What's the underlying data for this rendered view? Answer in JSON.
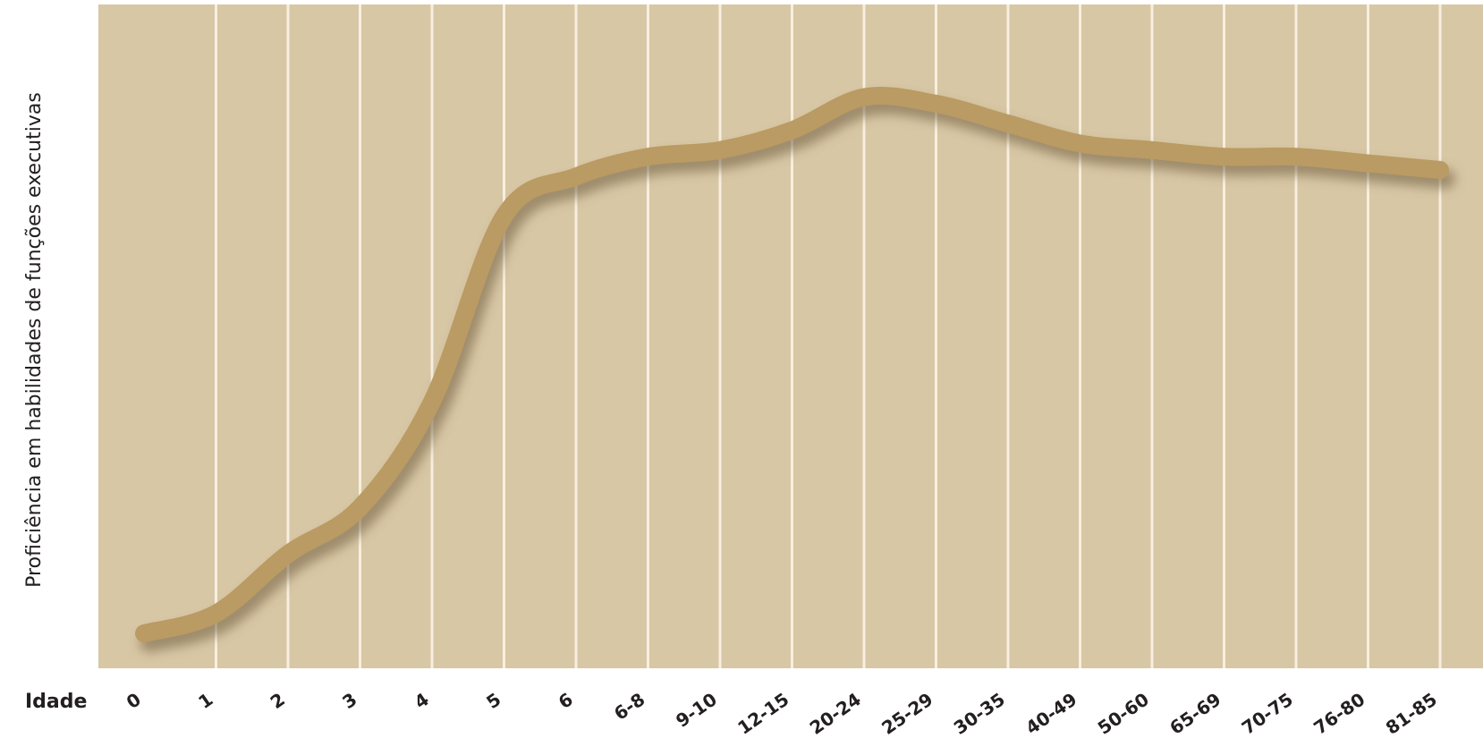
{
  "chart_data": {
    "type": "line",
    "title": "",
    "ylabel": "Proficiência em habilidades de funções executivas",
    "xlabel": "Idade",
    "categories": [
      "0",
      "1",
      "2",
      "3",
      "4",
      "5",
      "6",
      "6-8",
      "9-10",
      "12-15",
      "20-24",
      "25-29",
      "30-35",
      "40-49",
      "50-60",
      "65-69",
      "70-75",
      "76-80",
      "81-85"
    ],
    "series": [
      {
        "values": [
          5,
          8,
          17,
          24,
          40,
          68,
          74,
          77,
          78,
          81,
          86,
          85,
          82,
          79,
          78,
          77,
          77,
          76,
          75
        ]
      }
    ],
    "ylim": [
      0,
      100
    ],
    "grid": "vertical",
    "legend": "none",
    "colors": {
      "background": "#d8c7a5",
      "line": "#b99b63",
      "grid": "#f6efe0",
      "shadow": "#6b5a3a"
    }
  }
}
